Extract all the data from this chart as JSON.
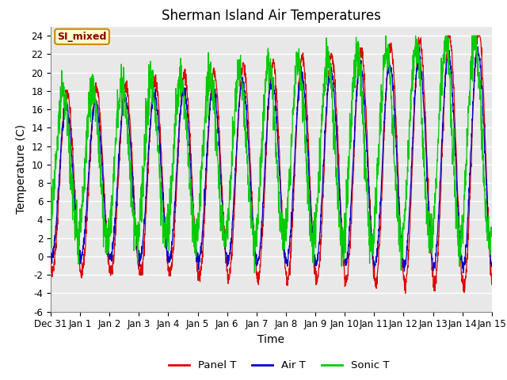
{
  "title": "Sherman Island Air Temperatures",
  "xlabel": "Time",
  "ylabel": "Temperature (C)",
  "ylim": [
    -6,
    25
  ],
  "yticks": [
    -6,
    -4,
    -2,
    0,
    2,
    4,
    6,
    8,
    10,
    12,
    14,
    16,
    18,
    20,
    22,
    24
  ],
  "xtick_labels": [
    "Dec 31",
    "Jan 1",
    "Jan 2",
    "Jan 3",
    "Jan 4",
    "Jan 5",
    "Jan 6",
    "Jan 7",
    "Jan 8",
    "Jan 9",
    "Jan 10",
    "Jan 11",
    "Jan 12",
    "Jan 13",
    "Jan 14",
    "Jan 15"
  ],
  "panel_t_color": "#dd0000",
  "air_t_color": "#0000cc",
  "sonic_t_color": "#00cc00",
  "bg_color": "#e8e8e8",
  "grid_color": "#ffffff",
  "annotation_text": "SI_mixed",
  "annotation_bg": "#ffffcc",
  "annotation_border": "#cc8800",
  "legend_labels": [
    "Panel T",
    "Air T",
    "Sonic T"
  ],
  "title_fontsize": 12,
  "axis_label_fontsize": 10,
  "tick_fontsize": 8.5
}
